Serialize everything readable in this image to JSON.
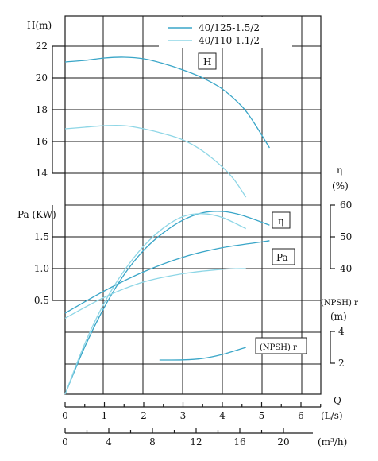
{
  "chart_data": {
    "type": "line",
    "legend": {
      "placement": "top-right",
      "entries": [
        {
          "name": "40/125-1.5/2",
          "color": "#3aa6c8"
        },
        {
          "name": "40/110-1.1/2",
          "color": "#8ed6e6"
        }
      ]
    },
    "labels": {
      "head_axis": "H(m)",
      "power_axis": "Pa (KW)",
      "eff_axis_symbol": "η",
      "eff_axis_unit": "(%)",
      "npsh_axis_label": "(NPSH) r",
      "npsh_axis_unit": "(m)",
      "q_symbol": "Q",
      "q_ls_unit": "(L/s)",
      "q_m3h_unit": "(m³/h)",
      "curve_H": "H",
      "curve_eta": "η",
      "curve_Pa": "Pa",
      "curve_npsh": "(NPSH) r"
    },
    "axes": {
      "q_ls": {
        "min": 0,
        "max": 7,
        "ticks": [
          0,
          1,
          2,
          3,
          4,
          5,
          6
        ],
        "unit": "L/s"
      },
      "q_m3h": {
        "ticks": [
          0,
          4,
          8,
          12,
          16,
          20
        ],
        "unit": "m3/h"
      },
      "head": {
        "min": 12,
        "max": 22,
        "ticks": [
          14,
          16,
          18,
          20,
          22
        ],
        "unit": "m"
      },
      "power": {
        "min": 0,
        "max": 2.0,
        "ticks": [
          "0.5",
          "1.0",
          "1.5"
        ],
        "unit": "KW"
      },
      "efficiency": {
        "min": 40,
        "max": 60,
        "ticks": [
          40,
          50,
          60
        ],
        "unit": "%"
      },
      "npsh": {
        "min": 2,
        "max": 4,
        "ticks": [
          2,
          4
        ],
        "unit": "m"
      }
    },
    "series": [
      {
        "name": "40/125-1.5/2",
        "quantity": "H",
        "unit": "m",
        "x": [
          0,
          0.5,
          1,
          1.5,
          2,
          2.5,
          3,
          3.5,
          4,
          4.5,
          4.8,
          5.2
        ],
        "y": [
          21.0,
          21.1,
          21.25,
          21.3,
          21.2,
          20.9,
          20.5,
          20.0,
          19.3,
          18.2,
          17.2,
          15.6
        ]
      },
      {
        "name": "40/110-1.1/2",
        "quantity": "H",
        "unit": "m",
        "x": [
          0,
          0.5,
          1,
          1.5,
          2,
          2.5,
          3,
          3.5,
          4,
          4.3,
          4.6
        ],
        "y": [
          16.8,
          16.9,
          17.0,
          17.0,
          16.8,
          16.5,
          16.1,
          15.4,
          14.4,
          13.6,
          12.5
        ]
      },
      {
        "name": "40/125-1.5/2",
        "quantity": "eta",
        "unit": "%",
        "x": [
          0,
          0.5,
          1,
          1.5,
          2,
          2.5,
          3,
          3.5,
          4,
          4.5,
          5.2
        ],
        "y": [
          0,
          15.4,
          27.9,
          38.1,
          45.8,
          51.3,
          55.3,
          57.6,
          58.0,
          56.8,
          53.7
        ]
      },
      {
        "name": "40/110-1.1/2",
        "quantity": "eta",
        "unit": "%",
        "x": [
          0,
          0.5,
          1,
          1.5,
          2,
          2.5,
          3,
          3.5,
          4,
          4.6
        ],
        "y": [
          0,
          16.4,
          29.3,
          39.3,
          47.1,
          52.8,
          56.4,
          57.3,
          56.1,
          52.6
        ]
      },
      {
        "name": "40/125-1.5/2",
        "quantity": "Pa",
        "unit": "KW",
        "x": [
          0,
          1,
          2,
          3,
          4,
          5,
          5.2
        ],
        "y": [
          0.3,
          0.65,
          0.95,
          1.18,
          1.33,
          1.42,
          1.44
        ]
      },
      {
        "name": "40/110-1.1/2",
        "quantity": "Pa",
        "unit": "KW",
        "x": [
          0,
          1,
          2,
          3,
          4,
          4.6
        ],
        "y": [
          0.22,
          0.55,
          0.79,
          0.92,
          0.99,
          1.0
        ]
      },
      {
        "name": "40/125-1.5/2",
        "quantity": "NPSHr",
        "unit": "m",
        "x": [
          2.4,
          3.0,
          3.5,
          4.0,
          4.6
        ],
        "y": [
          2.2,
          2.21,
          2.3,
          2.55,
          3.0
        ]
      }
    ]
  }
}
